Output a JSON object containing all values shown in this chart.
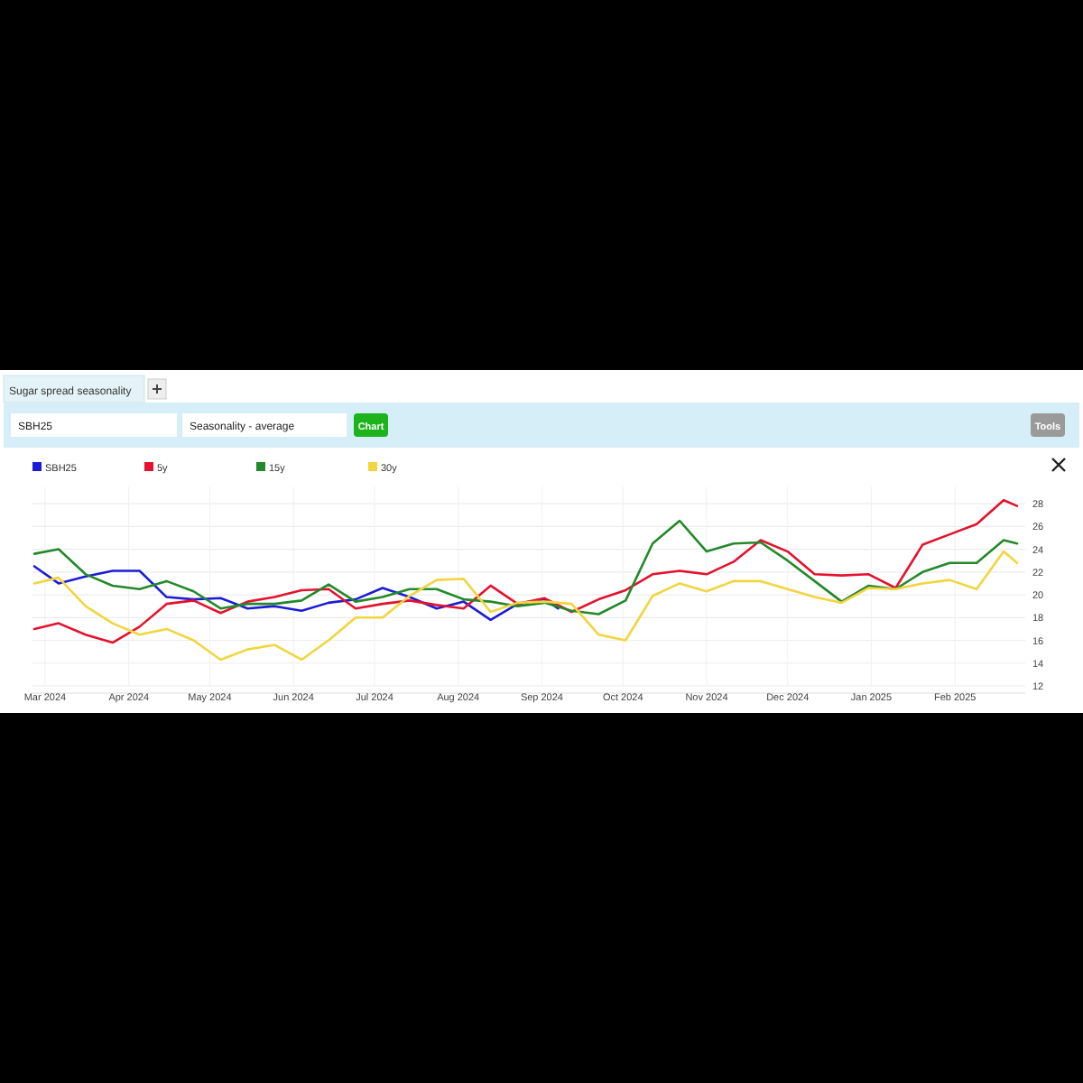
{
  "chart_data": {
    "type": "line",
    "title": "Sugar spread seasonality",
    "annotations": [
      "SBH25",
      "Seasonality - average",
      "Chart",
      "Tools"
    ],
    "x": [
      "2024-02-26",
      "2024-03-06",
      "2024-03-16",
      "2024-03-26",
      "2024-04-05",
      "2024-04-15",
      "2024-04-25",
      "2024-05-05",
      "2024-05-15",
      "2024-05-25",
      "2024-06-04",
      "2024-06-14",
      "2024-06-24",
      "2024-07-04",
      "2024-07-14",
      "2024-07-24",
      "2024-08-03",
      "2024-08-13",
      "2024-08-23",
      "2024-09-02",
      "2024-09-12",
      "2024-09-22",
      "2024-10-02",
      "2024-10-12",
      "2024-10-22",
      "2024-11-01",
      "2024-11-11",
      "2024-11-21",
      "2024-12-01",
      "2024-12-11",
      "2024-12-21",
      "2024-12-31",
      "2025-01-10",
      "2025-01-20",
      "2025-01-30",
      "2025-02-09",
      "2025-02-19",
      "2025-02-24"
    ],
    "series": [
      {
        "name": "SBH25",
        "color": "#1c1cd6",
        "x": [
          "2024-02-26",
          "2024-03-06",
          "2024-03-16",
          "2024-03-26",
          "2024-04-05",
          "2024-04-15",
          "2024-04-25",
          "2024-05-05",
          "2024-05-15",
          "2024-05-25",
          "2024-06-04",
          "2024-06-14",
          "2024-06-24",
          "2024-07-04",
          "2024-07-14",
          "2024-07-24",
          "2024-08-03",
          "2024-08-13",
          "2024-08-23",
          "2024-09-02",
          "2024-09-07"
        ],
        "values": [
          22.5,
          21,
          21.6,
          22.1,
          22.1,
          19.8,
          19.6,
          19.7,
          18.8,
          19,
          18.6,
          19.3,
          19.6,
          20.6,
          19.8,
          18.8,
          19.4,
          17.8,
          19.2,
          19.6,
          18.8
        ]
      },
      {
        "name": "5y",
        "color": "#e3132f",
        "values": [
          17,
          17.5,
          16.5,
          15.8,
          17.2,
          19.2,
          19.5,
          18.4,
          19.4,
          19.8,
          20.4,
          20.5,
          18.8,
          19.2,
          19.5,
          19.1,
          18.8,
          20.8,
          19.2,
          19.7,
          18.5,
          19.6,
          20.4,
          21.8,
          22.1,
          21.8,
          22.9,
          24.8,
          23.8,
          21.8,
          21.7,
          21.8,
          20.6,
          24.4,
          25.3,
          26.2,
          28.3,
          27.8
        ]
      },
      {
        "name": "15y",
        "color": "#23892a",
        "values": [
          23.6,
          24,
          21.8,
          20.8,
          20.5,
          21.2,
          20.3,
          18.8,
          19.2,
          19.2,
          19.5,
          20.9,
          19.4,
          19.8,
          20.5,
          20.5,
          19.6,
          19.4,
          19,
          19.3,
          18.6,
          18.3,
          19.5,
          24.5,
          26.5,
          23.8,
          24.5,
          24.6,
          23,
          21.2,
          19.4,
          20.8,
          20.5,
          22,
          22.8,
          22.8,
          24.8,
          24.5
        ]
      },
      {
        "name": "30y",
        "color": "#f2d53e",
        "values": [
          21,
          21.5,
          19,
          17.5,
          16.5,
          17,
          16,
          14.3,
          15.2,
          15.6,
          14.3,
          16,
          18,
          18,
          19.9,
          21.3,
          21.4,
          18.5,
          19.3,
          19.4,
          19.2,
          16.5,
          16,
          19.9,
          21,
          20.3,
          21.2,
          21.2,
          20.5,
          19.8,
          19.3,
          20.6,
          20.5,
          21,
          21.3,
          20.5,
          23.8,
          22.8
        ]
      }
    ],
    "xlim": [
      "2024-02-25",
      "2025-02-27"
    ],
    "xticks": [
      {
        "value": "2024-03-01",
        "label": "Mar 2024"
      },
      {
        "value": "2024-04-01",
        "label": "Apr 2024"
      },
      {
        "value": "2024-05-01",
        "label": "May 2024"
      },
      {
        "value": "2024-06-01",
        "label": "Jun 2024"
      },
      {
        "value": "2024-07-01",
        "label": "Jul 2024"
      },
      {
        "value": "2024-08-01",
        "label": "Aug 2024"
      },
      {
        "value": "2024-09-01",
        "label": "Sep 2024"
      },
      {
        "value": "2024-10-01",
        "label": "Oct 2024"
      },
      {
        "value": "2024-11-01",
        "label": "Nov 2024"
      },
      {
        "value": "2024-12-01",
        "label": "Dec 2024"
      },
      {
        "value": "2025-01-01",
        "label": "Jan 2025"
      },
      {
        "value": "2025-02-01",
        "label": "Feb 2025"
      }
    ],
    "ylim": [
      12,
      29.5
    ],
    "yticks": [
      12,
      14,
      16,
      18,
      20,
      22,
      24,
      26,
      28
    ],
    "grid": true,
    "legend": "top left",
    "line_style": "solid",
    "marker": "none"
  }
}
